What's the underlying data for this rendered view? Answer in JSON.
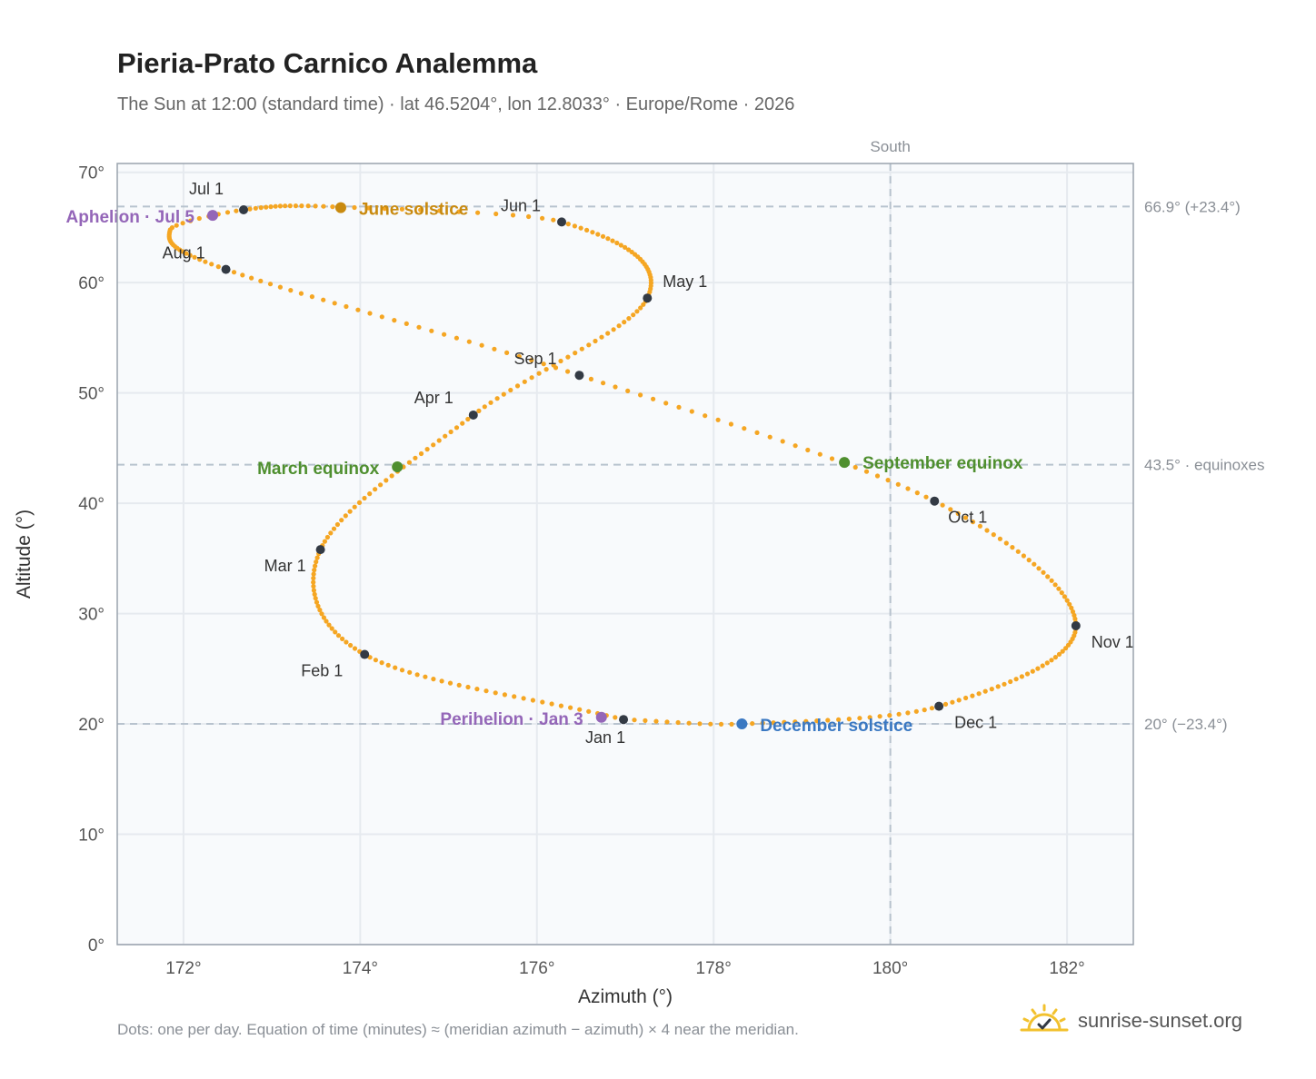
{
  "title": "Pieria-Prato Carnico Analemma",
  "subtitle": "The Sun at 12:00 (standard time) · lat 46.5204°, lon 12.8033° · Europe/Rome · 2026",
  "footnote": "Dots: one per day. Equation of time (minutes) ≈ (meridian azimuth − azimuth) × 4 near the meridian.",
  "brand": {
    "text": "sunrise-sunset.org",
    "icon": "sun-logo-icon"
  },
  "colors": {
    "path": "#f5a623",
    "month": "#333a44",
    "solstice_june": "#c98a0f",
    "solstice_dec": "#3a78c2",
    "equinox": "#4f8f2f",
    "apsis": "#9466b8",
    "ref_line": "#b8c3ce",
    "grid": "#e6eaef",
    "plot_bg": "#f8fafc",
    "axis": "#9aa3ad"
  },
  "chart_data": {
    "type": "scatter",
    "title": "Pieria-Prato Carnico Analemma",
    "xlabel": "Azimuth (°)",
    "ylabel": "Altitude (°)",
    "xlim": [
      171.25,
      182.75
    ],
    "ylim": [
      0,
      70.8
    ],
    "xticks": [
      172,
      174,
      176,
      178,
      180,
      182
    ],
    "xtick_labels": [
      "172°",
      "174°",
      "176°",
      "178°",
      "180°",
      "182°"
    ],
    "yticks": [
      0,
      10,
      20,
      30,
      40,
      50,
      60,
      70
    ],
    "ytick_labels": [
      "0°",
      "10°",
      "20°",
      "30°",
      "40°",
      "50°",
      "60°",
      "70°"
    ],
    "grid": true,
    "meridian": {
      "x": 180,
      "label": "South"
    },
    "reference_lines": [
      {
        "y": 66.9,
        "label": "66.9° (+23.4°)"
      },
      {
        "y": 43.5,
        "label": "43.5° · equinoxes"
      },
      {
        "y": 20,
        "label": "20° (−23.4°)"
      }
    ],
    "anchors": [
      [
        1,
        176.98,
        20.4
      ],
      [
        32,
        174.05,
        26.3
      ],
      [
        60,
        173.55,
        35.8
      ],
      [
        91,
        175.28,
        48.0
      ],
      [
        121,
        177.25,
        58.6
      ],
      [
        152,
        176.28,
        65.5
      ],
      [
        166,
        173.8,
        66.85
      ],
      [
        182,
        172.68,
        66.6
      ],
      [
        192,
        171.85,
        64.8
      ],
      [
        213,
        172.48,
        61.2
      ],
      [
        244,
        176.48,
        51.6
      ],
      [
        274,
        180.5,
        40.2
      ],
      [
        305,
        182.1,
        28.9
      ],
      [
        335,
        180.55,
        21.6
      ],
      [
        355,
        178.32,
        20.0
      ],
      [
        366,
        176.98,
        20.4
      ]
    ],
    "month_markers": [
      {
        "label": "Jan 1",
        "x": 176.98,
        "y": 20.4
      },
      {
        "label": "Feb 1",
        "x": 174.05,
        "y": 26.3
      },
      {
        "label": "Mar 1",
        "x": 173.55,
        "y": 35.8
      },
      {
        "label": "Apr 1",
        "x": 175.28,
        "y": 48.0
      },
      {
        "label": "May 1",
        "x": 177.25,
        "y": 58.6
      },
      {
        "label": "Jun 1",
        "x": 176.28,
        "y": 65.5
      },
      {
        "label": "Jul 1",
        "x": 172.68,
        "y": 66.6
      },
      {
        "label": "Aug 1",
        "x": 172.48,
        "y": 61.2
      },
      {
        "label": "Sep 1",
        "x": 176.48,
        "y": 51.6
      },
      {
        "label": "Oct 1",
        "x": 180.5,
        "y": 40.2
      },
      {
        "label": "Nov 1",
        "x": 182.1,
        "y": 28.9
      },
      {
        "label": "Dec 1",
        "x": 180.55,
        "y": 21.6
      }
    ],
    "events": [
      {
        "label": "June solstice",
        "x": 173.78,
        "y": 66.8,
        "kind": "solstice_june"
      },
      {
        "label": "December solstice",
        "x": 178.32,
        "y": 20.0,
        "kind": "solstice_dec"
      },
      {
        "label": "March equinox",
        "x": 174.42,
        "y": 43.3,
        "kind": "equinox"
      },
      {
        "label": "September equinox",
        "x": 179.48,
        "y": 43.7,
        "kind": "equinox"
      },
      {
        "label": "Aphelion · Jul 5",
        "x": 172.33,
        "y": 66.1,
        "kind": "apsis"
      },
      {
        "label": "Perihelion · Jan 3",
        "x": 176.73,
        "y": 20.6,
        "kind": "apsis"
      }
    ]
  }
}
